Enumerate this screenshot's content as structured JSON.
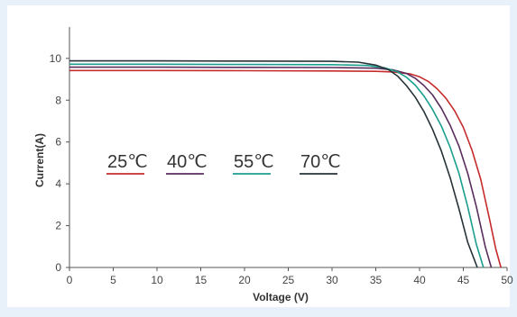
{
  "chart_data": {
    "type": "line",
    "title": "",
    "xlabel": "Voltage  (V)",
    "ylabel": "Current(A)",
    "xlim": [
      0,
      50
    ],
    "ylim": [
      0,
      11.5
    ],
    "xticks": [
      0,
      5,
      10,
      15,
      20,
      25,
      30,
      35,
      40,
      45,
      50
    ],
    "yticks": [
      0,
      2,
      4,
      6,
      8,
      10
    ],
    "grid": false,
    "legend_position": "middle-left",
    "series": [
      {
        "name": "25℃",
        "color": "#c62b2b",
        "x": [
          0,
          10,
          20,
          30,
          35,
          37,
          39,
          40,
          41,
          42,
          43,
          44,
          45,
          46,
          47,
          48,
          48.7,
          49.3
        ],
        "y": [
          9.42,
          9.42,
          9.41,
          9.4,
          9.38,
          9.35,
          9.25,
          9.12,
          8.9,
          8.55,
          8.1,
          7.5,
          6.7,
          5.6,
          4.2,
          2.3,
          0.9,
          0
        ]
      },
      {
        "name": "40℃",
        "color": "#5a2d5e",
        "x": [
          0,
          10,
          20,
          30,
          35,
          37,
          38.5,
          39.5,
          40.5,
          41.5,
          42.5,
          43.5,
          44.5,
          45.5,
          46.5,
          47.5,
          48.2
        ],
        "y": [
          9.58,
          9.58,
          9.57,
          9.56,
          9.53,
          9.45,
          9.28,
          9.05,
          8.7,
          8.25,
          7.6,
          6.8,
          5.8,
          4.5,
          2.9,
          1.0,
          0
        ]
      },
      {
        "name": "55℃",
        "color": "#1b9e8e",
        "x": [
          0,
          10,
          20,
          30,
          34,
          36,
          37.5,
          38.5,
          39.5,
          40.5,
          41.5,
          42.5,
          43.5,
          44.5,
          45.5,
          46.5,
          47.3
        ],
        "y": [
          9.72,
          9.72,
          9.71,
          9.7,
          9.66,
          9.55,
          9.35,
          9.1,
          8.72,
          8.2,
          7.55,
          6.75,
          5.75,
          4.5,
          2.9,
          1.1,
          0
        ]
      },
      {
        "name": "70℃",
        "color": "#263238",
        "x": [
          0,
          10,
          20,
          30,
          33,
          35,
          36.5,
          37.5,
          38.5,
          39.5,
          40.5,
          41.5,
          42.5,
          43.5,
          44.5,
          45.5,
          46.6
        ],
        "y": [
          9.88,
          9.88,
          9.87,
          9.86,
          9.82,
          9.68,
          9.45,
          9.15,
          8.7,
          8.15,
          7.45,
          6.6,
          5.55,
          4.3,
          2.8,
          1.2,
          0
        ]
      }
    ]
  }
}
